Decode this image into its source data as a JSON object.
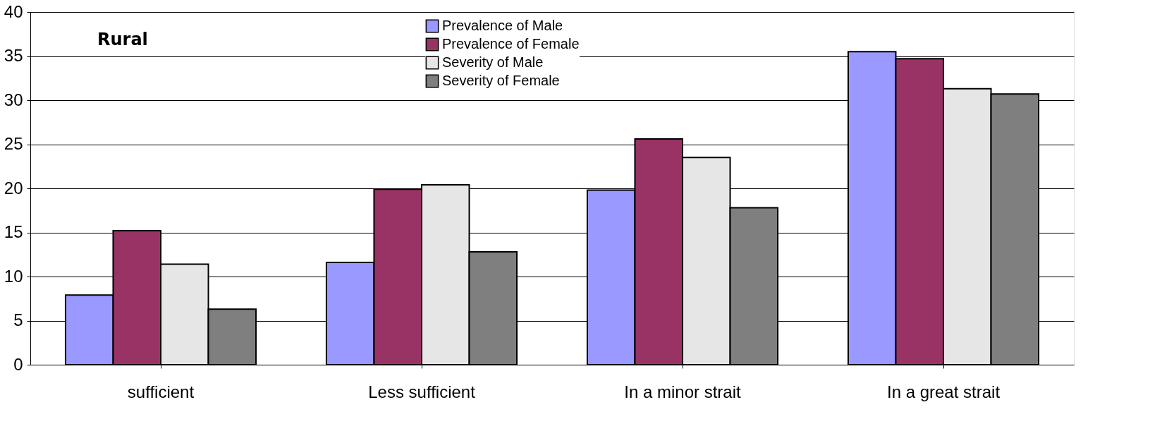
{
  "chart_data": {
    "type": "bar",
    "categories": [
      "sufficient",
      "Less sufficient",
      "In a minor strait",
      "In a great strait"
    ],
    "series": [
      {
        "name": "Prevalence of Male",
        "color": "#9999ff",
        "values": [
          7.9,
          11.6,
          19.8,
          35.5
        ]
      },
      {
        "name": "Prevalence of Female",
        "color": "#993366",
        "values": [
          15.2,
          19.9,
          25.6,
          34.7
        ]
      },
      {
        "name": "Severity of Male",
        "color": "#e6e6e6",
        "values": [
          11.4,
          20.4,
          23.5,
          31.3
        ]
      },
      {
        "name": "Severity of Female",
        "color": "#7f7f7f",
        "values": [
          6.3,
          12.8,
          17.8,
          30.7
        ]
      }
    ],
    "ylim": [
      0,
      40
    ],
    "yticks": [
      0,
      5,
      10,
      15,
      20,
      25,
      30,
      35,
      40
    ],
    "grid": "y",
    "legend": "top",
    "annotations": [
      "Rural"
    ]
  }
}
